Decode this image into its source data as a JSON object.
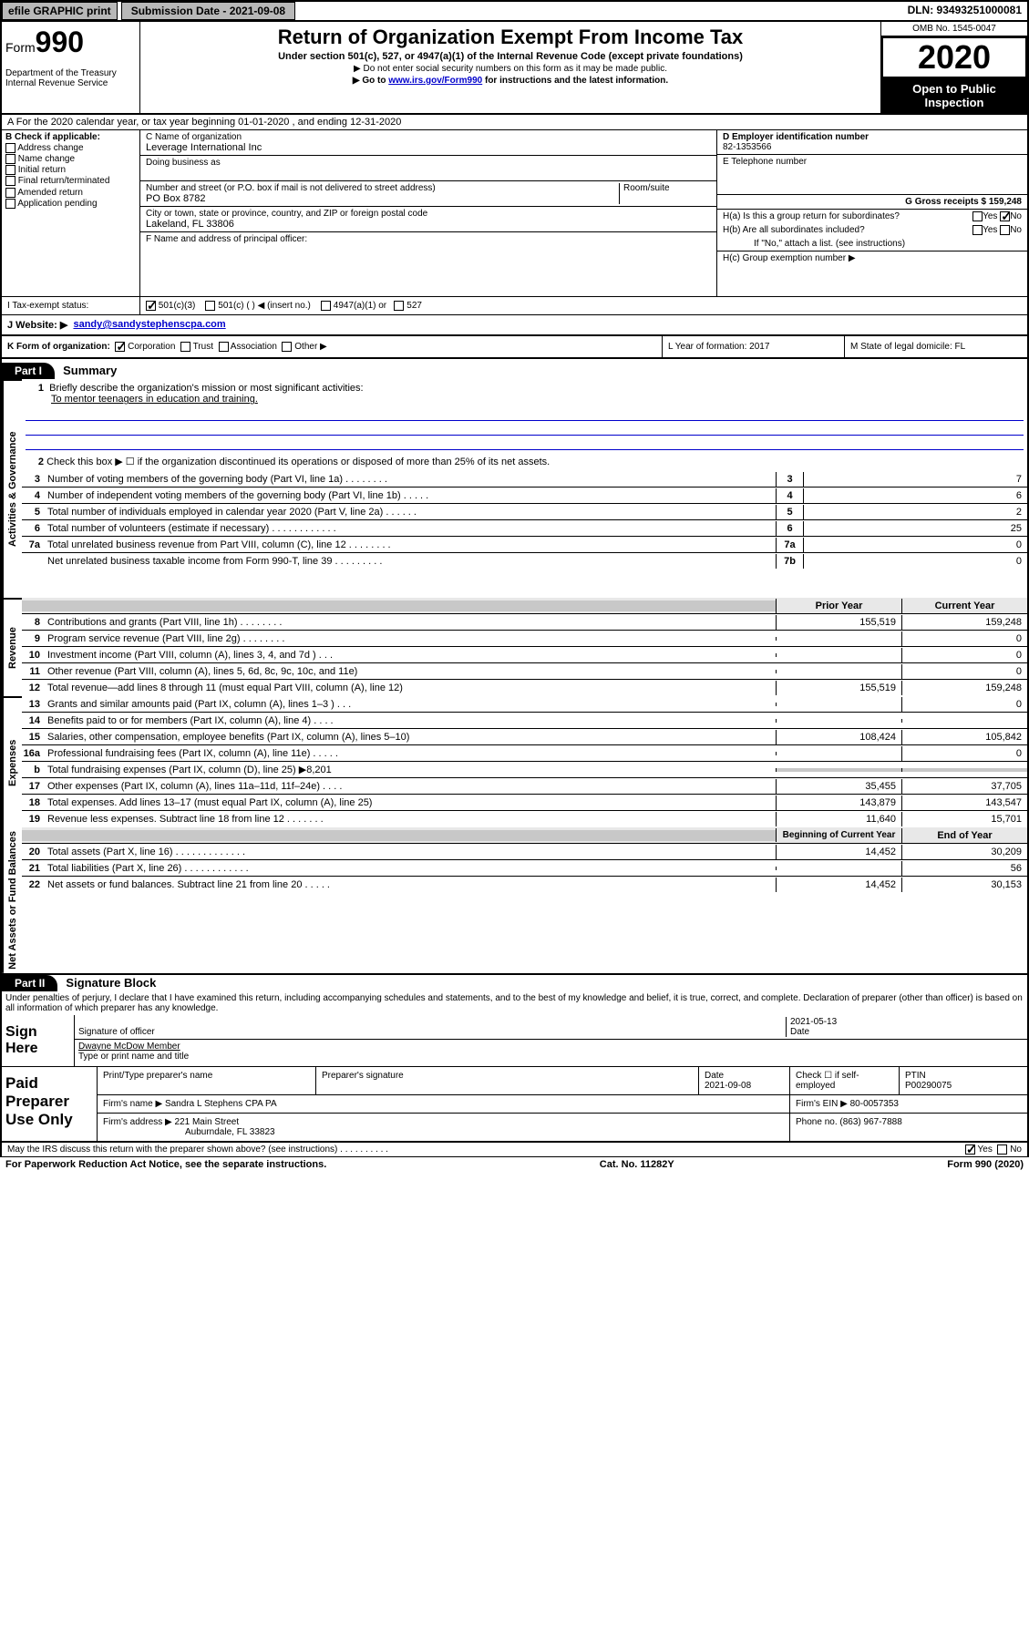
{
  "topbar": {
    "efile": "efile GRAPHIC print",
    "submission": "Submission Date - 2021-09-08",
    "dln": "DLN: 93493251000081"
  },
  "header": {
    "form_prefix": "Form",
    "form_number": "990",
    "dept": "Department of the Treasury Internal Revenue Service",
    "title": "Return of Organization Exempt From Income Tax",
    "subtitle": "Under section 501(c), 527, or 4947(a)(1) of the Internal Revenue Code (except private foundations)",
    "note1": "▶ Do not enter social security numbers on this form as it may be made public.",
    "note2_pre": "▶ Go to ",
    "note2_link": "www.irs.gov/Form990",
    "note2_post": " for instructions and the latest information.",
    "omb": "OMB No. 1545-0047",
    "year": "2020",
    "inspection": "Open to Public Inspection"
  },
  "row_a": "A For the 2020 calendar year, or tax year beginning 01-01-2020   , and ending 12-31-2020",
  "col_b": {
    "header": "B Check if applicable:",
    "items": [
      "Address change",
      "Name change",
      "Initial return",
      "Final return/terminated",
      "Amended return",
      "Application pending"
    ]
  },
  "org": {
    "c_label": "C Name of organization",
    "c_value": "Leverage International Inc",
    "dba_label": "Doing business as",
    "addr_label": "Number and street (or P.O. box if mail is not delivered to street address)",
    "suite_label": "Room/suite",
    "addr_value": "PO Box 8782",
    "city_label": "City or town, state or province, country, and ZIP or foreign postal code",
    "city_value": "Lakeland, FL  33806",
    "f_label": "F  Name and address of principal officer:"
  },
  "col_h": {
    "d_label": "D Employer identification number",
    "ein": "82-1353566",
    "e_label": "E Telephone number",
    "g_label": "G Gross receipts $ 159,248",
    "ha": "H(a)  Is this a group return for subordinates?",
    "hb": "H(b)  Are all subordinates included?",
    "hb_note": "If \"No,\" attach a list. (see instructions)",
    "hc": "H(c)  Group exemption number ▶",
    "yes": "Yes",
    "no": "No"
  },
  "status": {
    "i": "I  Tax-exempt status:",
    "opts": [
      "501(c)(3)",
      "501(c) (  ) ◀ (insert no.)",
      "4947(a)(1) or",
      "527"
    ]
  },
  "website": {
    "label": "J Website: ▶",
    "value": "sandy@sandystephenscpa.com"
  },
  "k_row": {
    "k": "K Form of organization:",
    "opts": [
      "Corporation",
      "Trust",
      "Association",
      "Other ▶"
    ],
    "l": "L Year of formation: 2017",
    "m": "M State of legal domicile: FL"
  },
  "part1": {
    "hdr": "Part I",
    "title": "Summary"
  },
  "summary": {
    "governance_label": "Activities & Governance",
    "revenue_label": "Revenue",
    "expenses_label": "Expenses",
    "netassets_label": "Net Assets or Fund Balances",
    "line1": "Briefly describe the organization's mission or most significant activities:",
    "mission": "To mentor teenagers in education and training.",
    "line2": "Check this box ▶ ☐  if the organization discontinued its operations or disposed of more than 25% of its net assets.",
    "prior_year": "Prior Year",
    "current_year": "Current Year",
    "begin_year": "Beginning of Current Year",
    "end_year": "End of Year",
    "rows_gov": [
      {
        "n": "3",
        "t": "Number of voting members of the governing body (Part VI, line 1a)   .    .    .    .    .    .    .    .",
        "box": "3",
        "v": "7"
      },
      {
        "n": "4",
        "t": "Number of independent voting members of the governing body (Part VI, line 1b)   .    .    .    .    .",
        "box": "4",
        "v": "6"
      },
      {
        "n": "5",
        "t": "Total number of individuals employed in calendar year 2020 (Part V, line 2a)   .    .    .    .    .    .",
        "box": "5",
        "v": "2"
      },
      {
        "n": "6",
        "t": "Total number of volunteers (estimate if necessary)   .    .    .    .    .    .    .    .    .    .    .    .",
        "box": "6",
        "v": "25"
      },
      {
        "n": "7a",
        "t": "Total unrelated business revenue from Part VIII, column (C), line 12   .    .    .    .    .    .    .    .",
        "box": "7a",
        "v": "0"
      },
      {
        "n": "",
        "t": "Net unrelated business taxable income from Form 990-T, line 39   .    .    .    .    .    .    .    .    .",
        "box": "7b",
        "v": "0"
      }
    ],
    "rows_rev": [
      {
        "n": "8",
        "t": "Contributions and grants (Part VIII, line 1h)   .    .    .    .    .    .    .    .",
        "p": "155,519",
        "c": "159,248"
      },
      {
        "n": "9",
        "t": "Program service revenue (Part VIII, line 2g)  .    .    .    .    .    .    .    .",
        "p": "",
        "c": "0"
      },
      {
        "n": "10",
        "t": "Investment income (Part VIII, column (A), lines 3, 4, and 7d )   .    .    .",
        "p": "",
        "c": "0"
      },
      {
        "n": "11",
        "t": "Other revenue (Part VIII, column (A), lines 5, 6d, 8c, 9c, 10c, and 11e)",
        "p": "",
        "c": "0"
      },
      {
        "n": "12",
        "t": "Total revenue—add lines 8 through 11 (must equal Part VIII, column (A), line 12)",
        "p": "155,519",
        "c": "159,248"
      }
    ],
    "rows_exp": [
      {
        "n": "13",
        "t": "Grants and similar amounts paid (Part IX, column (A), lines 1–3 )   .    .    .",
        "p": "",
        "c": "0"
      },
      {
        "n": "14",
        "t": "Benefits paid to or for members (Part IX, column (A), line 4)   .    .    .    .",
        "p": "",
        "c": ""
      },
      {
        "n": "15",
        "t": "Salaries, other compensation, employee benefits (Part IX, column (A), lines 5–10)",
        "p": "108,424",
        "c": "105,842"
      },
      {
        "n": "16a",
        "t": "Professional fundraising fees (Part IX, column (A), line 11e)   .    .    .    .    .",
        "p": "",
        "c": "0"
      },
      {
        "n": "b",
        "t": "Total fundraising expenses (Part IX, column (D), line 25) ▶8,201",
        "p": "shade",
        "c": "shade"
      },
      {
        "n": "17",
        "t": "Other expenses (Part IX, column (A), lines 11a–11d, 11f–24e)   .    .    .    .",
        "p": "35,455",
        "c": "37,705"
      },
      {
        "n": "18",
        "t": "Total expenses. Add lines 13–17 (must equal Part IX, column (A), line 25)",
        "p": "143,879",
        "c": "143,547"
      },
      {
        "n": "19",
        "t": "Revenue less expenses. Subtract line 18 from line 12   .    .    .    .    .    .    .",
        "p": "11,640",
        "c": "15,701"
      }
    ],
    "rows_net": [
      {
        "n": "20",
        "t": "Total assets (Part X, line 16)   .    .    .    .    .    .    .    .    .    .    .    .    .",
        "p": "14,452",
        "c": "30,209"
      },
      {
        "n": "21",
        "t": "Total liabilities (Part X, line 26)  .    .    .    .    .    .    .    .    .    .    .    .",
        "p": "",
        "c": "56"
      },
      {
        "n": "22",
        "t": "Net assets or fund balances. Subtract line 21 from line 20   .    .    .    .    .",
        "p": "14,452",
        "c": "30,153"
      }
    ]
  },
  "part2": {
    "hdr": "Part II",
    "title": "Signature Block",
    "perjury": "Under penalties of perjury, I declare that I have examined this return, including accompanying schedules and statements, and to the best of my knowledge and belief, it is true, correct, and complete. Declaration of preparer (other than officer) is based on all information of which preparer has any knowledge.",
    "sign_here": "Sign Here",
    "sig_off": "Signature of officer",
    "date": "Date",
    "date_val": "2021-05-13",
    "officer": "Dwayne McDow Member",
    "type_name": "Type or print name and title",
    "paid": "Paid Preparer Use Only",
    "prep_name_label": "Print/Type preparer's name",
    "prep_sig_label": "Preparer's signature",
    "prep_date_label": "Date",
    "prep_date": "2021-09-08",
    "check_se": "Check ☐ if self-employed",
    "ptin_label": "PTIN",
    "ptin": "P00290075",
    "firm_name_label": "Firm's name    ▶",
    "firm_name": "Sandra L Stephens CPA PA",
    "firm_ein_label": "Firm's EIN ▶",
    "firm_ein": "80-0057353",
    "firm_addr_label": "Firm's address ▶",
    "firm_addr1": "221 Main Street",
    "firm_addr2": "Auburndale, FL  33823",
    "phone_label": "Phone no.",
    "phone": "(863) 967-7888",
    "discuss": "May the IRS discuss this return with the preparer shown above? (see instructions)   .    .    .    .    .    .    .    .    .    .",
    "footer_left": "For Paperwork Reduction Act Notice, see the separate instructions.",
    "footer_mid": "Cat. No. 11282Y",
    "footer_right": "Form 990 (2020)"
  }
}
